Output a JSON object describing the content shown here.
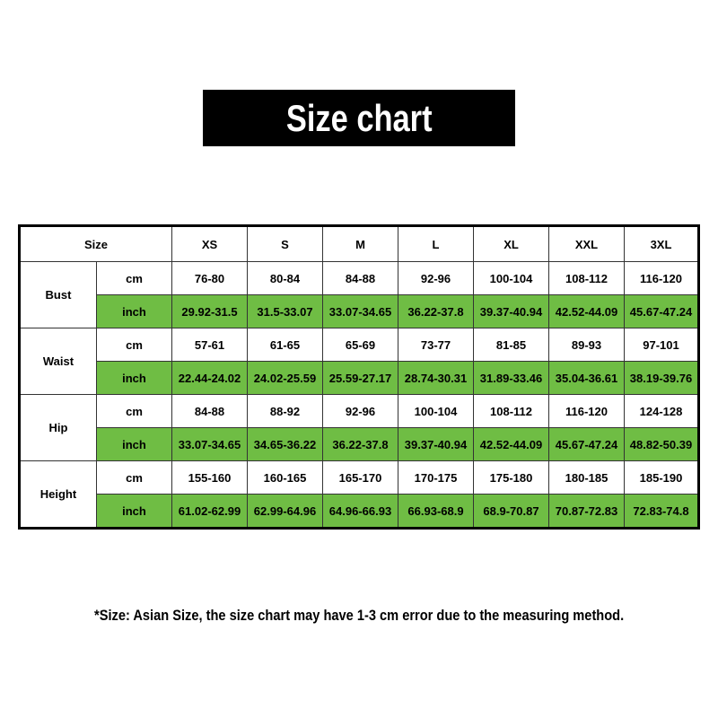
{
  "title": "Size chart",
  "table": {
    "corner": "Size",
    "sizes": [
      "XS",
      "S",
      "M",
      "L",
      "XL",
      "XXL",
      "3XL"
    ],
    "colors": {
      "inch_row": "#6fbd44"
    },
    "rows": [
      {
        "label": "Bust",
        "cm_unit": "cm",
        "inch_unit": "inch",
        "cm": [
          "76-80",
          "80-84",
          "84-88",
          "92-96",
          "100-104",
          "108-112",
          "116-120"
        ],
        "inch": [
          "29.92-31.5",
          "31.5-33.07",
          "33.07-34.65",
          "36.22-37.8",
          "39.37-40.94",
          "42.52-44.09",
          "45.67-47.24"
        ]
      },
      {
        "label": "Waist",
        "cm_unit": "cm",
        "inch_unit": "inch",
        "cm": [
          "57-61",
          "61-65",
          "65-69",
          "73-77",
          "81-85",
          "89-93",
          "97-101"
        ],
        "inch": [
          "22.44-24.02",
          "24.02-25.59",
          "25.59-27.17",
          "28.74-30.31",
          "31.89-33.46",
          "35.04-36.61",
          "38.19-39.76"
        ]
      },
      {
        "label": "Hip",
        "cm_unit": "cm",
        "inch_unit": "inch",
        "cm": [
          "84-88",
          "88-92",
          "92-96",
          "100-104",
          "108-112",
          "116-120",
          "124-128"
        ],
        "inch": [
          "33.07-34.65",
          "34.65-36.22",
          "36.22-37.8",
          "39.37-40.94",
          "42.52-44.09",
          "45.67-47.24",
          "48.82-50.39"
        ]
      },
      {
        "label": "Height",
        "cm_unit": "cm",
        "inch_unit": "inch",
        "cm": [
          "155-160",
          "160-165",
          "165-170",
          "170-175",
          "175-180",
          "180-185",
          "185-190"
        ],
        "inch": [
          "61.02-62.99",
          "62.99-64.96",
          "64.96-66.93",
          "66.93-68.9",
          "68.9-70.87",
          "70.87-72.83",
          "72.83-74.8"
        ]
      }
    ]
  },
  "note": "*Size: Asian Size, the size chart may have 1-3 cm error due to the measuring method."
}
